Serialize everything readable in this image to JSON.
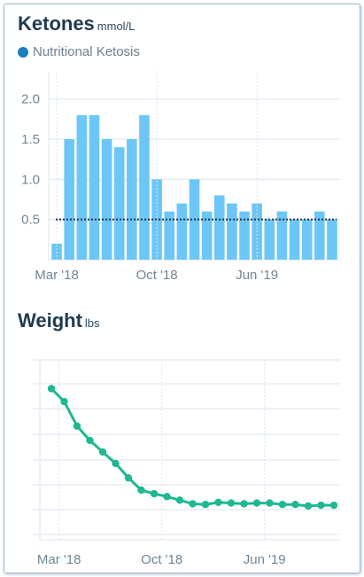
{
  "chart_data": [
    {
      "type": "bar",
      "title": "Ketones",
      "unit": "mmol/L",
      "legend": [
        "Nutritional Ketosis"
      ],
      "reference_line": 0.5,
      "y_ticks": [
        "0.5",
        "1.0",
        "1.5",
        "2.0"
      ],
      "ylim": [
        0,
        2.35
      ],
      "x_ticks": [
        "Mar '18",
        "Oct '18",
        "Jun '19"
      ],
      "values": [
        0.2,
        1.5,
        1.8,
        1.8,
        1.5,
        1.4,
        1.5,
        1.8,
        1.0,
        0.6,
        0.7,
        1.0,
        0.6,
        0.8,
        0.7,
        0.6,
        0.7,
        0.5,
        0.6,
        0.5,
        0.5,
        0.6,
        0.5
      ],
      "colors": {
        "bar": "#6cc6f7",
        "reference": "#1d3349",
        "legend_dot": "#1a7fc1",
        "grid": "#dbe6f0"
      }
    },
    {
      "type": "line",
      "title": "Weight",
      "unit": "lbs",
      "x_ticks": [
        "Mar '18",
        "Oct '18",
        "Jun '19"
      ],
      "values": [
        31,
        29.2,
        25.8,
        23.8,
        22.2,
        20.6,
        18.6,
        16.9,
        16.4,
        16.0,
        15.5,
        15.0,
        14.9,
        15.2,
        15.1,
        15.0,
        15.1,
        15.1,
        14.9,
        14.9,
        14.7,
        14.8,
        14.8
      ],
      "ylim": [
        10,
        35
      ],
      "colors": {
        "line": "#1fb892",
        "grid": "#dbe6f0"
      }
    }
  ]
}
